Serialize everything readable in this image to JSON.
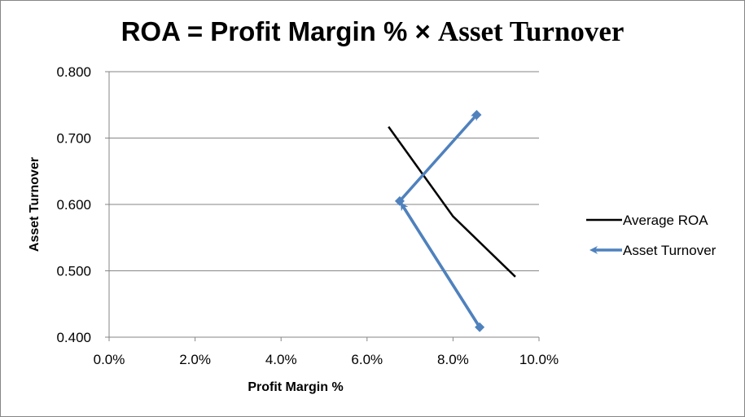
{
  "chart_data": {
    "type": "line",
    "title_part1": "ROA = Profit Margin % × ",
    "title_part2": "Asset Turnover",
    "xlabel": "Profit Margin %",
    "ylabel": "Asset Turnover",
    "xlim": [
      0,
      0.1
    ],
    "ylim": [
      0.4,
      0.8
    ],
    "x_ticks": [
      "0.0%",
      "2.0%",
      "4.0%",
      "6.0%",
      "8.0%",
      "10.0%"
    ],
    "x_tick_values": [
      0,
      0.02,
      0.04,
      0.06,
      0.08,
      0.1
    ],
    "y_ticks": [
      "0.400",
      "0.500",
      "0.600",
      "0.700",
      "0.800"
    ],
    "y_tick_values": [
      0.4,
      0.5,
      0.6,
      0.7,
      0.8
    ],
    "grid": "horizontal",
    "legend_position": "right",
    "series": [
      {
        "name": "Average ROA",
        "color": "#000000",
        "marker": "none",
        "points": [
          [
            0.065,
            0.717
          ],
          [
            0.08,
            0.582
          ],
          [
            0.0945,
            0.491
          ]
        ]
      },
      {
        "name": "Asset Turnover",
        "color": "#4f81bd",
        "marker": "diamond",
        "arrows": true,
        "points": [
          [
            0.0862,
            0.415
          ],
          [
            0.0676,
            0.605
          ],
          [
            0.0855,
            0.735
          ]
        ]
      }
    ]
  }
}
